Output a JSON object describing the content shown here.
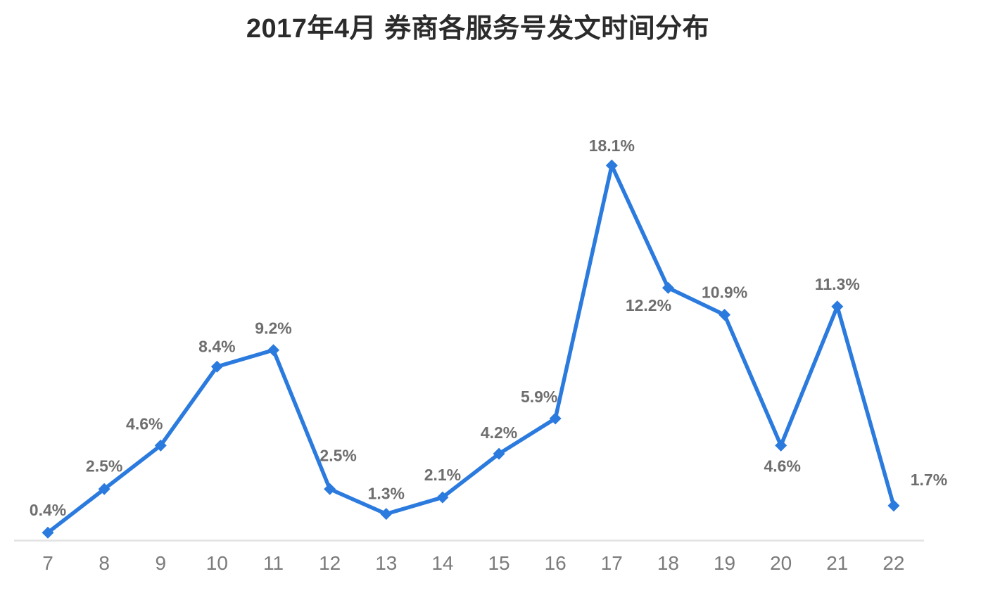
{
  "chart_data": {
    "type": "line",
    "title": "2017年4月 券商各服务号发文时间分布",
    "xlabel": "",
    "ylabel": "",
    "categories": [
      "7",
      "8",
      "9",
      "10",
      "11",
      "12",
      "13",
      "14",
      "15",
      "16",
      "17",
      "18",
      "19",
      "20",
      "21",
      "22"
    ],
    "values": [
      0.4,
      2.5,
      4.6,
      8.4,
      9.2,
      2.5,
      1.3,
      2.1,
      4.2,
      5.9,
      18.1,
      12.2,
      10.9,
      4.6,
      11.3,
      1.7
    ],
    "data_labels": [
      "0.4%",
      "2.5%",
      "4.6%",
      "8.4%",
      "9.2%",
      "2.5%",
      "1.3%",
      "2.1%",
      "4.2%",
      "5.9%",
      "18.1%",
      "12.2%",
      "10.9%",
      "4.6%",
      "11.3%",
      "1.7%"
    ],
    "ylim": [
      0,
      20
    ],
    "grid": false,
    "legend": "none",
    "y_axis_visible": false,
    "marker_shape": "diamond",
    "colors": {
      "line": "#2b7ade",
      "marker": "#2b7ade",
      "data_label": "#6e6e6e",
      "tick_label": "#7b7b7b",
      "axis_line": "#e2e2e2",
      "title": "#2b2b2b",
      "background": "#ffffff"
    }
  }
}
